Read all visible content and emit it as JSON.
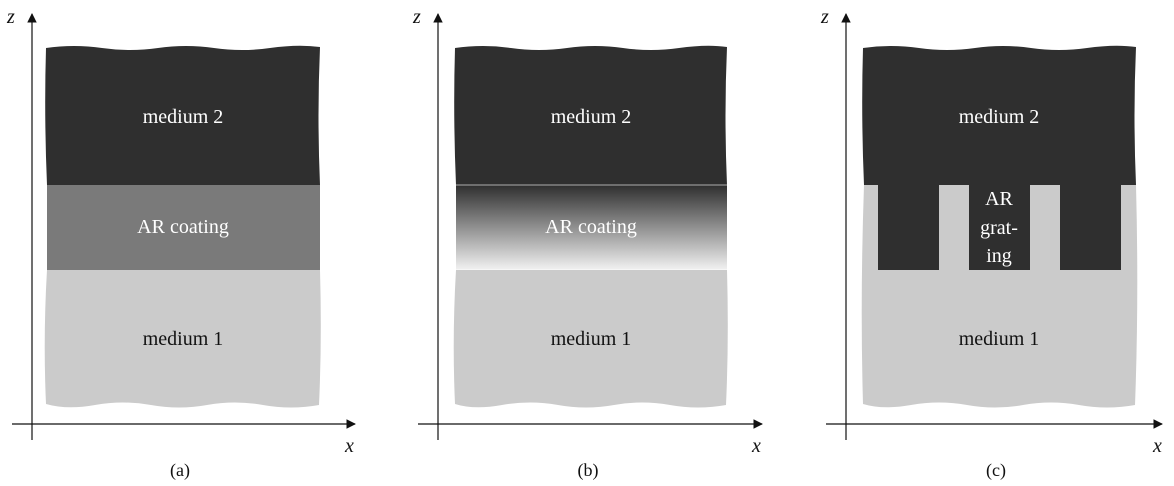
{
  "panels": [
    {
      "axes": {
        "z": "z",
        "x": "x"
      },
      "medium2": "medium 2",
      "middle": "AR coating",
      "medium1": "medium 1",
      "caption": "(a)"
    },
    {
      "axes": {
        "z": "z",
        "x": "x"
      },
      "medium2": "medium 2",
      "middle": "AR coating",
      "medium1": "medium 1",
      "caption": "(b)"
    },
    {
      "axes": {
        "z": "z",
        "x": "x"
      },
      "medium2": "medium 2",
      "middle_lines": [
        "AR",
        "grat-",
        "ing"
      ],
      "medium1": "medium 1",
      "caption": "(c)"
    }
  ],
  "colors": {
    "medium2": "#2f2f2f",
    "ar_coating": "#7a7a7a",
    "medium1": "#cbcbcb",
    "axis": "#111111"
  }
}
